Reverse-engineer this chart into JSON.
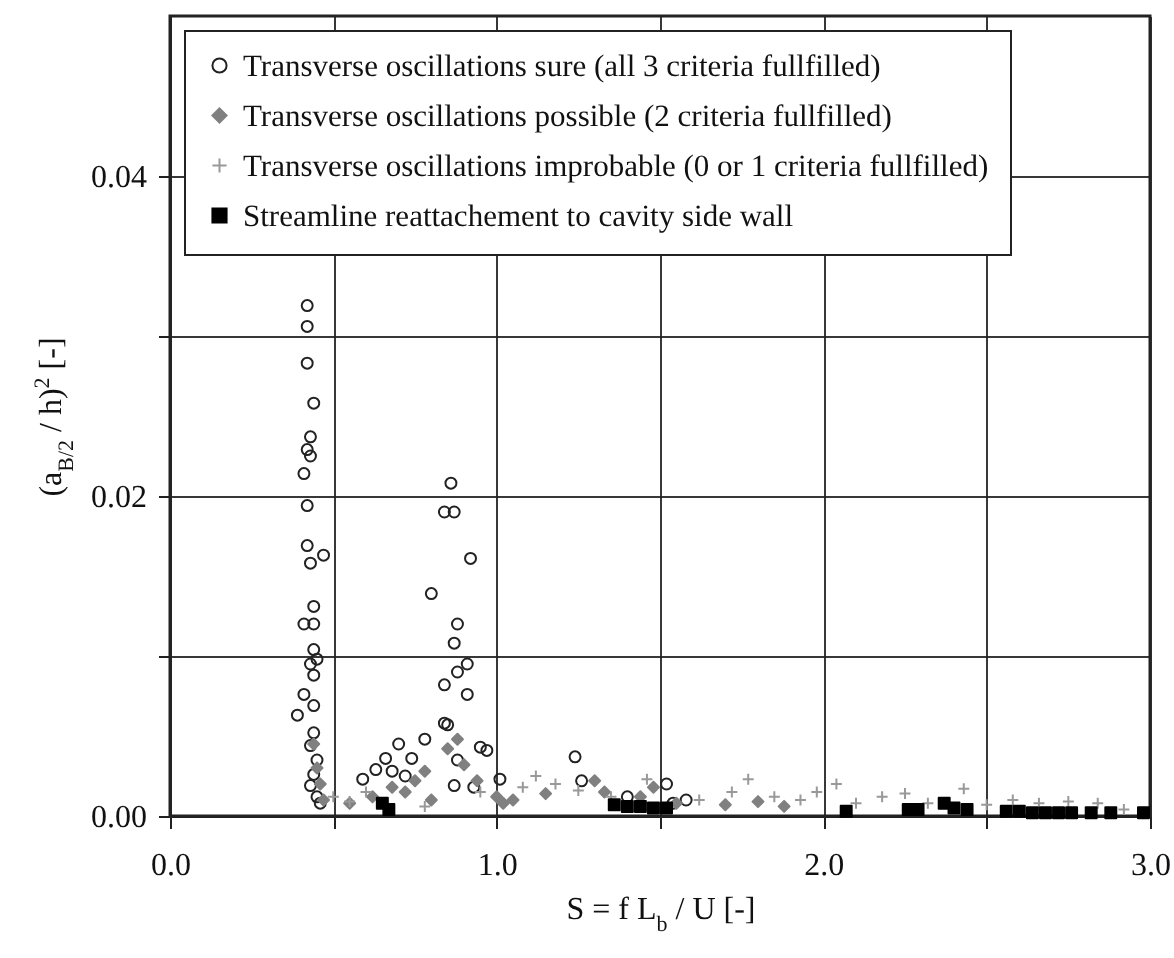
{
  "chart_data": {
    "type": "scatter",
    "xlabel": "S = f L$_{b}$ / U [-]",
    "ylabel": "(a$_{B/2}$ / h)$^{2}$ [-]",
    "xlim": [
      0,
      3
    ],
    "ylim": [
      0,
      0.05
    ],
    "xticks": [
      {
        "value": 0,
        "label": "0.0"
      },
      {
        "value": 0.5,
        "label": null
      },
      {
        "value": 1,
        "label": "1.0"
      },
      {
        "value": 1.5,
        "label": null
      },
      {
        "value": 2,
        "label": "2.0"
      },
      {
        "value": 2.5,
        "label": null
      },
      {
        "value": 3,
        "label": "3.0"
      }
    ],
    "yticks": [
      {
        "value": 0,
        "label": "0.00"
      },
      {
        "value": 0.01,
        "label": null
      },
      {
        "value": 0.02,
        "label": "0.02"
      },
      {
        "value": 0.03,
        "label": null
      },
      {
        "value": 0.04,
        "label": "0.04"
      }
    ],
    "grid": true,
    "legend": "top",
    "series": [
      {
        "name": "Transverse oscillations sure (all 3 criteria fullfilled)",
        "color": "#222222",
        "marker": "circle",
        "x": [
          0.42,
          0.42,
          0.42,
          0.44,
          0.43,
          0.42,
          0.43,
          0.41,
          0.42,
          0.42,
          0.43,
          0.47,
          0.44,
          0.41,
          0.44,
          0.44,
          0.43,
          0.45,
          0.44,
          0.41,
          0.39,
          0.44,
          0.43,
          0.44,
          0.45,
          0.44,
          0.43,
          0.45,
          0.46,
          0.86,
          0.84,
          0.87,
          0.92,
          0.8,
          0.88,
          0.87,
          0.91,
          0.88,
          0.84,
          0.91,
          0.84,
          0.85,
          0.88,
          0.97,
          0.95,
          0.87,
          0.93,
          0.7,
          0.78,
          0.74,
          0.66,
          0.59,
          0.63,
          1.01,
          1.24,
          1.26,
          1.4,
          1.52,
          1.58,
          1.54,
          0.72,
          0.68
        ],
        "values": [
          0.0319,
          0.0306,
          0.0283,
          0.0258,
          0.0237,
          0.0229,
          0.0225,
          0.0214,
          0.0194,
          0.0169,
          0.0158,
          0.0163,
          0.0131,
          0.012,
          0.012,
          0.0104,
          0.0095,
          0.0098,
          0.0088,
          0.0076,
          0.0063,
          0.0069,
          0.0044,
          0.0052,
          0.0035,
          0.0026,
          0.0019,
          0.0012,
          0.0008,
          0.0208,
          0.019,
          0.019,
          0.0161,
          0.0139,
          0.012,
          0.0108,
          0.0095,
          0.009,
          0.0082,
          0.0076,
          0.0058,
          0.0057,
          0.0035,
          0.0041,
          0.0043,
          0.0019,
          0.0018,
          0.0045,
          0.0048,
          0.0036,
          0.0036,
          0.0023,
          0.0029,
          0.0023,
          0.0037,
          0.0022,
          0.0012,
          0.002,
          0.001,
          0.0008,
          0.0025,
          0.0028
        ]
      },
      {
        "name": "Transverse oscillations possible (2 criteria fullfilled)",
        "color": "#808080",
        "marker": "diamond",
        "x": [
          0.44,
          0.45,
          0.46,
          0.47,
          0.62,
          0.68,
          0.72,
          0.75,
          0.78,
          0.85,
          0.88,
          0.9,
          0.94,
          1.0,
          1.02,
          1.05,
          1.15,
          1.3,
          1.33,
          1.44,
          1.48,
          1.55,
          1.7,
          1.8,
          1.88,
          0.55,
          0.8
        ],
        "values": [
          0.0045,
          0.003,
          0.002,
          0.001,
          0.0012,
          0.0018,
          0.0015,
          0.0022,
          0.0028,
          0.0042,
          0.0048,
          0.0032,
          0.0022,
          0.0012,
          0.0008,
          0.001,
          0.0014,
          0.0022,
          0.0015,
          0.0012,
          0.0018,
          0.0008,
          0.0007,
          0.0009,
          0.0006,
          0.0008,
          0.001
        ]
      },
      {
        "name": "Transverse oscillations improbable (0 or 1 criteria fullfilled)",
        "color": "#999999",
        "marker": "cross",
        "x": [
          0.5,
          0.55,
          0.6,
          0.78,
          0.95,
          1.08,
          1.12,
          1.18,
          1.25,
          1.35,
          1.46,
          1.62,
          1.72,
          1.77,
          1.85,
          1.93,
          1.98,
          2.04,
          2.1,
          2.18,
          2.25,
          2.32,
          2.43,
          2.5,
          2.58,
          2.66,
          2.75,
          2.84,
          2.92
        ],
        "values": [
          0.0012,
          0.0009,
          0.0015,
          0.0006,
          0.0015,
          0.0018,
          0.0025,
          0.002,
          0.0016,
          0.0012,
          0.0023,
          0.001,
          0.0015,
          0.0023,
          0.0012,
          0.001,
          0.0015,
          0.002,
          0.0008,
          0.0012,
          0.0014,
          0.0008,
          0.0017,
          0.0007,
          0.001,
          0.0008,
          0.0009,
          0.0008,
          0.0004
        ]
      },
      {
        "name": "Streamline reattachement to cavity side wall",
        "color": "#000000",
        "marker": "square",
        "x": [
          0.65,
          0.67,
          1.36,
          1.4,
          1.44,
          1.48,
          1.52,
          2.07,
          2.26,
          2.29,
          2.37,
          2.4,
          2.44,
          2.56,
          2.6,
          2.64,
          2.68,
          2.72,
          2.76,
          2.82,
          2.88,
          2.98
        ],
        "values": [
          0.0008,
          0.0004,
          0.0007,
          0.0006,
          0.0006,
          0.0005,
          0.0005,
          0.0003,
          0.0004,
          0.0004,
          0.0008,
          0.0005,
          0.0004,
          0.0003,
          0.0003,
          0.0002,
          0.0002,
          0.0002,
          0.0002,
          0.0002,
          0.0002,
          0.0002
        ]
      }
    ]
  }
}
